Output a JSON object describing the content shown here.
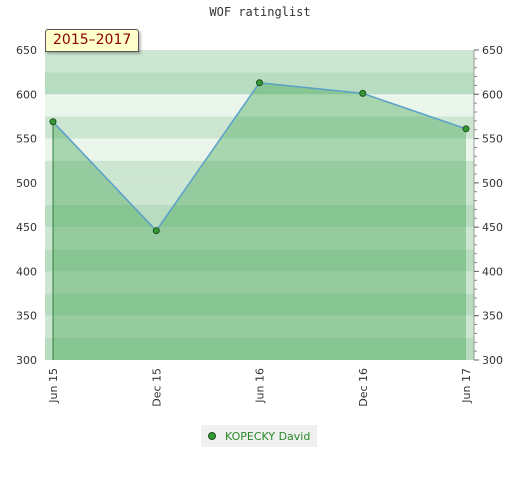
{
  "colors": {
    "line": "#5aa0c8",
    "area": "#3aa04a",
    "marker_fill": "#339933",
    "marker_stroke": "#1f4f1f",
    "band_light": "#eaf5ec",
    "band_mid": "#cde6d2",
    "band_dark": "#b7dcc0"
  },
  "chart_data": {
    "type": "area",
    "title": "WOF ratinglist",
    "subtitle": "2015–2017",
    "xlabel": "",
    "ylabel": "",
    "ylim": [
      300,
      650
    ],
    "y_ticks": [
      300,
      350,
      400,
      450,
      500,
      550,
      600,
      650
    ],
    "categories": [
      "Jun 15",
      "Dec 15",
      "Jun 16",
      "Dec 16",
      "Jun 17"
    ],
    "series": [
      {
        "name": "KOPECKY David",
        "values": [
          569,
          446,
          613,
          601,
          561
        ]
      }
    ],
    "grid": true,
    "legend_position": "bottom"
  }
}
